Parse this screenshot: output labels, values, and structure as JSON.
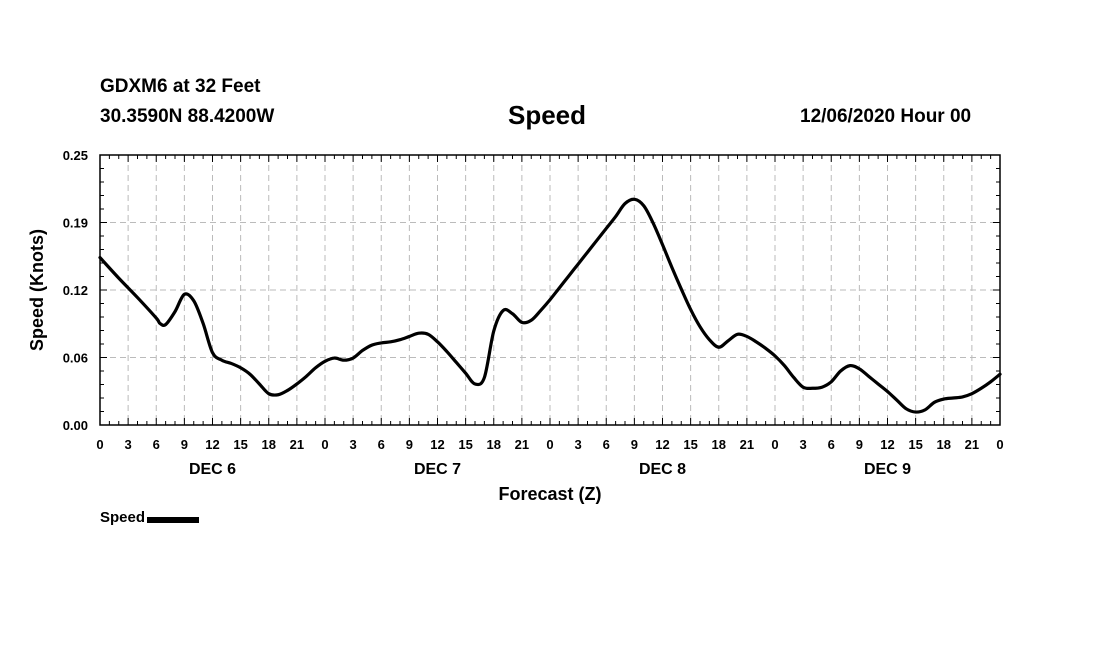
{
  "header": {
    "station": "GDXM6 at 32 Feet",
    "coords": "30.3590N 88.4200W",
    "title": "Speed",
    "datetime": "12/06/2020 Hour 00"
  },
  "legend": {
    "label": "Speed"
  },
  "colors": {
    "line": "#000000",
    "grid": "#bbbbbb"
  },
  "chart_data": {
    "type": "line",
    "title": "Speed",
    "xlabel": "Forecast (Z)",
    "ylabel": "Speed (Knots)",
    "ylim": [
      0,
      0.25
    ],
    "xlim": [
      0,
      96
    ],
    "y_ticks": [
      "0.00",
      "0.06",
      "0.12",
      "0.19",
      "0.25"
    ],
    "y_tick_values": [
      0,
      0.0625,
      0.125,
      0.1875,
      0.25
    ],
    "x_tick_labels": [
      "0",
      "3",
      "6",
      "9",
      "12",
      "15",
      "18",
      "21",
      "0",
      "3",
      "6",
      "9",
      "12",
      "15",
      "18",
      "21",
      "0",
      "3",
      "6",
      "9",
      "12",
      "15",
      "18",
      "21",
      "0",
      "3",
      "6",
      "9",
      "12",
      "15",
      "18",
      "21",
      "0"
    ],
    "day_labels": [
      {
        "label": "DEC 6",
        "x": 12
      },
      {
        "label": "DEC 7",
        "x": 36
      },
      {
        "label": "DEC 8",
        "x": 60
      },
      {
        "label": "DEC 9",
        "x": 84
      }
    ],
    "grid": true,
    "legend": "bottom-left",
    "series": [
      {
        "name": "Speed",
        "x": [
          0,
          2,
          4,
          6,
          6.4,
          7,
          8,
          9,
          10,
          11,
          12,
          13,
          14,
          15,
          16,
          17,
          18,
          19,
          20,
          21,
          22,
          23,
          24,
          25,
          26,
          27,
          28,
          29,
          30,
          31,
          32,
          33,
          34,
          35,
          36,
          37,
          38,
          39,
          40,
          41,
          42,
          43,
          44,
          45,
          46,
          47,
          48,
          49,
          50,
          51,
          52,
          53,
          54,
          55,
          56,
          57,
          58,
          59,
          60,
          61,
          62,
          63,
          64,
          65,
          66,
          67,
          68,
          69,
          70,
          71,
          72,
          73,
          74,
          75,
          76,
          77,
          78,
          79,
          80,
          81,
          82,
          83,
          84,
          85,
          86,
          87,
          88,
          89,
          90,
          91,
          92,
          93,
          94,
          95,
          96
        ],
        "y": [
          0.155,
          0.136,
          0.118,
          0.099,
          0.094,
          0.093,
          0.105,
          0.121,
          0.115,
          0.094,
          0.067,
          0.06,
          0.057,
          0.053,
          0.047,
          0.038,
          0.029,
          0.028,
          0.032,
          0.038,
          0.045,
          0.053,
          0.059,
          0.062,
          0.06,
          0.062,
          0.069,
          0.074,
          0.076,
          0.077,
          0.079,
          0.082,
          0.085,
          0.084,
          0.077,
          0.068,
          0.058,
          0.048,
          0.038,
          0.044,
          0.087,
          0.106,
          0.103,
          0.095,
          0.097,
          0.106,
          0.116,
          0.127,
          0.138,
          0.149,
          0.16,
          0.171,
          0.182,
          0.193,
          0.205,
          0.209,
          0.203,
          0.187,
          0.167,
          0.146,
          0.126,
          0.107,
          0.091,
          0.079,
          0.072,
          0.078,
          0.084,
          0.082,
          0.077,
          0.071,
          0.064,
          0.055,
          0.044,
          0.035,
          0.034,
          0.035,
          0.04,
          0.05,
          0.055,
          0.052,
          0.045,
          0.038,
          0.031,
          0.023,
          0.015,
          0.012,
          0.014,
          0.021,
          0.024,
          0.025,
          0.026,
          0.029,
          0.034,
          0.04,
          0.047
        ]
      }
    ]
  }
}
